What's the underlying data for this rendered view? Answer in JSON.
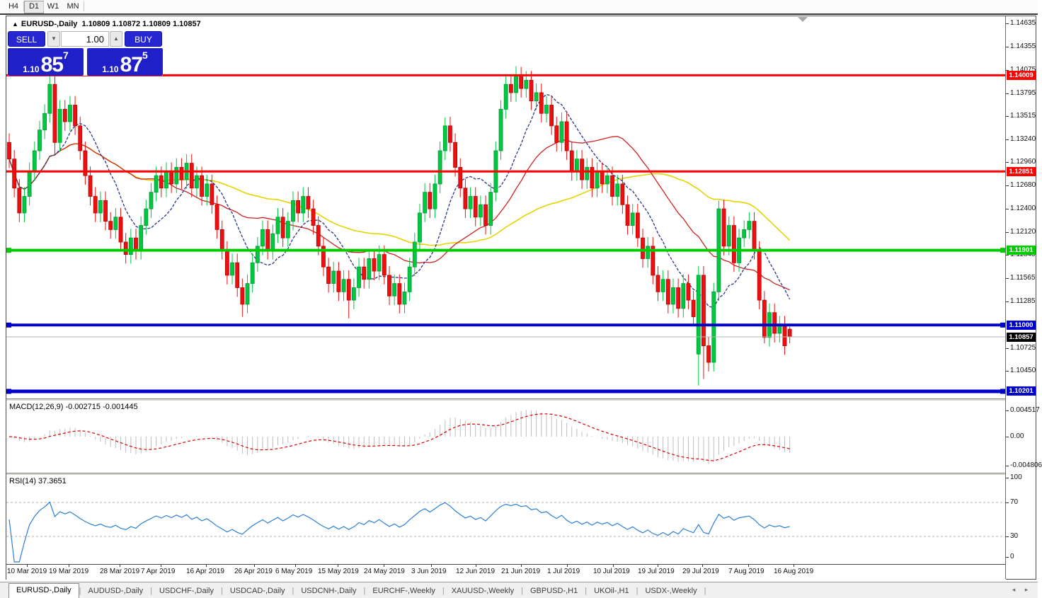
{
  "toolbar": {
    "timeframes": [
      {
        "label": "H4",
        "active": false
      },
      {
        "label": "D1",
        "active": true
      },
      {
        "label": "W1",
        "active": false
      },
      {
        "label": "MN",
        "active": false
      }
    ]
  },
  "chart_header": {
    "symbol": "EURUSD-,Daily",
    "ohlc": "1.10809 1.10872 1.10809 1.10857"
  },
  "trade_panel": {
    "sell_label": "SELL",
    "buy_label": "BUY",
    "volume": "1.00",
    "sell_price_small": "1.10",
    "sell_price_big": "85",
    "sell_price_sup": "7",
    "buy_price_small": "1.10",
    "buy_price_big": "87",
    "buy_price_sup": "5"
  },
  "price_scale_ticks": [
    "1.14635",
    "1.14355",
    "1.14075",
    "1.13795",
    "1.13515",
    "1.13240",
    "1.12960",
    "1.12680",
    "1.12400",
    "1.12120",
    "1.11845",
    "1.11565",
    "1.11285",
    "1.10725",
    "1.10450"
  ],
  "macd": {
    "label": "MACD(12,26,9) -0.002715 -0.001445",
    "scale": [
      "0.004517",
      "0.00",
      "-0.004806"
    ]
  },
  "rsi": {
    "label": "RSI(14) 37.3651",
    "scale": [
      "100",
      "70",
      "30",
      "0"
    ]
  },
  "tabs": [
    {
      "label": "EURUSD-,Daily",
      "active": true
    },
    {
      "label": "AUDUSD-,Daily",
      "active": false
    },
    {
      "label": "USDCHF-,Daily",
      "active": false
    },
    {
      "label": "USDCAD-,Daily",
      "active": false
    },
    {
      "label": "USDCNH-,Daily",
      "active": false
    },
    {
      "label": "EURCHF-,Weekly",
      "active": false
    },
    {
      "label": "XAUUSD-,Weekly",
      "active": false
    },
    {
      "label": "GBPUSD-,H1",
      "active": false
    },
    {
      "label": "UKOil-,H1",
      "active": false
    },
    {
      "label": "USDX-,Weekly",
      "active": false
    }
  ],
  "colors": {
    "bull": "#00C840",
    "bull_edge": "#009a30",
    "bear": "#EE1010",
    "bear_edge": "#b00000",
    "ma_fast": "#27348b",
    "ma_mid": "#cc2222",
    "ma_slow": "#e6d400",
    "level_red": "#ff0000",
    "level_green": "#00cc00",
    "level_blue": "#0000cc",
    "current_black": "#000000",
    "macd_bar": "#bdbdbd",
    "macd_signal": "#dd0000",
    "rsi_line": "#2a7fd4",
    "trade_blue": "#2020c8"
  },
  "chart_data": {
    "type": "candlestick",
    "symbol": "EURUSD-",
    "timeframe": "Daily",
    "ylim": [
      1.1017,
      1.14635
    ],
    "current_price": 1.10857,
    "levels": [
      {
        "price": 1.14009,
        "label": "1.14009",
        "color": "red",
        "width": 3,
        "handles": false
      },
      {
        "price": 1.12851,
        "label": "1.12851",
        "color": "red",
        "width": 3,
        "handles": false
      },
      {
        "price": 1.11901,
        "label": "1.11901",
        "color": "green",
        "width": 4,
        "handles": true
      },
      {
        "price": 1.11,
        "label": "1.11000",
        "color": "blue",
        "width": 4,
        "handles": true
      },
      {
        "price": 1.10201,
        "label": "1.10201",
        "color": "blue",
        "width": 5,
        "handles": true
      }
    ],
    "closes": [
      1.13,
      1.1265,
      1.1235,
      1.1255,
      1.1285,
      1.131,
      1.1335,
      1.1355,
      1.139,
      1.132,
      1.136,
      1.1345,
      1.1365,
      1.134,
      1.131,
      1.128,
      1.1255,
      1.1235,
      1.125,
      1.1225,
      1.1215,
      1.123,
      1.12,
      1.1185,
      1.1205,
      1.119,
      1.122,
      1.124,
      1.126,
      1.128,
      1.1265,
      1.1285,
      1.127,
      1.129,
      1.1275,
      1.1295,
      1.1265,
      1.128,
      1.1255,
      1.127,
      1.1245,
      1.1215,
      1.119,
      1.116,
      1.1175,
      1.1145,
      1.1125,
      1.115,
      1.1175,
      1.1195,
      1.1215,
      1.119,
      1.121,
      1.123,
      1.1205,
      1.1225,
      1.125,
      1.1235,
      1.1255,
      1.124,
      1.122,
      1.1195,
      1.117,
      1.115,
      1.1165,
      1.114,
      1.1155,
      1.113,
      1.1145,
      1.117,
      1.1155,
      1.118,
      1.1165,
      1.1185,
      1.116,
      1.1135,
      1.115,
      1.1125,
      1.114,
      1.117,
      1.12,
      1.1235,
      1.126,
      1.124,
      1.127,
      1.131,
      1.134,
      1.132,
      1.129,
      1.1265,
      1.124,
      1.1255,
      1.123,
      1.1245,
      1.122,
      1.126,
      1.131,
      1.136,
      1.139,
      1.138,
      1.14,
      1.1385,
      1.1395,
      1.137,
      1.138,
      1.1355,
      1.1365,
      1.134,
      1.132,
      1.1345,
      1.131,
      1.1285,
      1.13,
      1.1275,
      1.129,
      1.1265,
      1.1285,
      1.127,
      1.128,
      1.1255,
      1.127,
      1.1245,
      1.122,
      1.1235,
      1.1205,
      1.118,
      1.1195,
      1.116,
      1.114,
      1.1155,
      1.1125,
      1.1145,
      1.112,
      1.115,
      1.113,
      1.111,
      1.116,
      1.1075,
      1.1055,
      1.114,
      1.124,
      1.1195,
      1.122,
      1.1175,
      1.1205,
      1.1215,
      1.1225,
      1.119,
      1.113,
      1.1085,
      1.1115,
      1.109,
      1.11,
      1.1075,
      1.10857
    ],
    "first_open": 1.132,
    "default_wick": 0.0011,
    "overrides": {
      "8": {
        "h": 1.14
      },
      "9": {
        "h": 1.14,
        "l": 1.1305
      },
      "46": {
        "l": 1.111
      },
      "67": {
        "l": 1.1108
      },
      "86": {
        "h": 1.135
      },
      "98": {
        "h": 1.14
      },
      "100": {
        "h": 1.1412
      },
      "136": {
        "o": 1.1065,
        "l": 1.1027
      },
      "137": {
        "l": 1.1035
      },
      "140": {
        "h": 1.125
      },
      "149": {
        "l": 1.1078
      },
      "154": {
        "o": 1.1095,
        "h": 1.1098,
        "l": 1.1078
      }
    },
    "indicators": {
      "sma_fast": 10,
      "sma_mid": 25,
      "sma_slow": 50,
      "macd": [
        12,
        26,
        9
      ],
      "rsi": 14
    },
    "date_ticks": [
      {
        "label": "10 Mar 2019",
        "x": 1
      },
      {
        "label": "19 Mar 2019",
        "x": 60
      },
      {
        "label": "28 Mar 2019",
        "x": 132
      },
      {
        "label": "7 Apr 2019",
        "x": 190
      },
      {
        "label": "16 Apr 2019",
        "x": 254
      },
      {
        "label": "26 Apr 2019",
        "x": 322
      },
      {
        "label": "6 May 2019",
        "x": 380
      },
      {
        "label": "15 May 2019",
        "x": 440
      },
      {
        "label": "24 May 2019",
        "x": 505
      },
      {
        "label": "3 Jun 2019",
        "x": 572
      },
      {
        "label": "12 Jun 2019",
        "x": 635
      },
      {
        "label": "21 Jun 2019",
        "x": 699
      },
      {
        "label": "1 Jul 2019",
        "x": 764
      },
      {
        "label": "10 Jul 2019",
        "x": 829
      },
      {
        "label": "19 Jul 2019",
        "x": 892
      },
      {
        "label": "29 Jul 2019",
        "x": 955
      },
      {
        "label": "7 Aug 2019",
        "x": 1020
      },
      {
        "label": "16 Aug 2019",
        "x": 1084
      }
    ]
  },
  "tab_scroll": {
    "left": "◂",
    "right": "▸"
  }
}
